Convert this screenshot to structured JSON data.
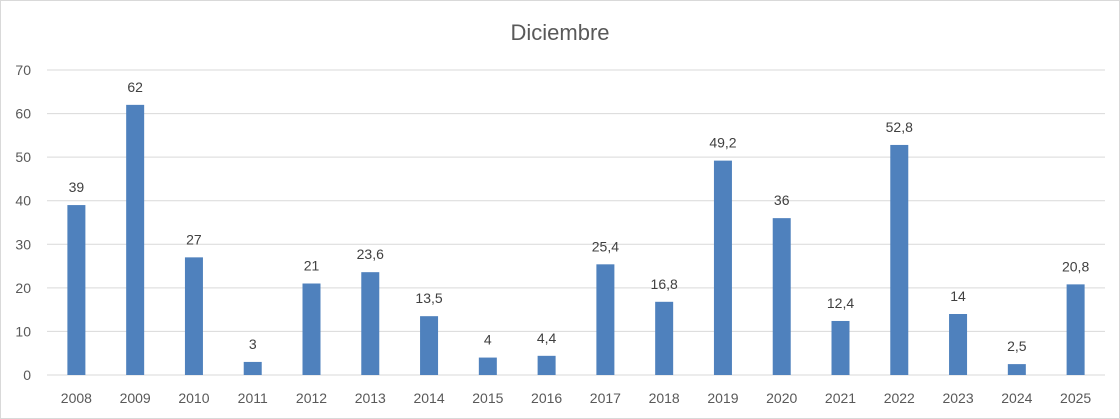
{
  "chart_data": {
    "type": "bar",
    "title": "Diciembre",
    "xlabel": "",
    "ylabel": "",
    "categories": [
      "2008",
      "2009",
      "2010",
      "2011",
      "2012",
      "2013",
      "2014",
      "2015",
      "2016",
      "2017",
      "2018",
      "2019",
      "2020",
      "2021",
      "2022",
      "2023",
      "2024",
      "2025"
    ],
    "values": [
      39,
      62,
      27,
      3,
      21,
      23.6,
      13.5,
      4,
      4.4,
      25.4,
      16.8,
      49.2,
      36,
      12.4,
      52.8,
      14,
      2.5,
      20.8
    ],
    "data_labels": [
      "39",
      "62",
      "27",
      "3",
      "21",
      "23,6",
      "13,5",
      "4",
      "4,4",
      "25,4",
      "16,8",
      "49,2",
      "36",
      "12,4",
      "52,8",
      "14",
      "2,5",
      "20,8"
    ],
    "ylim": [
      0,
      70
    ],
    "yticks": [
      0,
      10,
      20,
      30,
      40,
      50,
      60,
      70
    ],
    "ytick_labels": [
      "0",
      "10",
      "20",
      "30",
      "40",
      "50",
      "60",
      "70"
    ],
    "grid": true,
    "legend": "none",
    "colors": {
      "bar": "#4f81bd",
      "grid": "#d9d9d9",
      "axis_text": "#595959",
      "label_text": "#404040"
    }
  }
}
